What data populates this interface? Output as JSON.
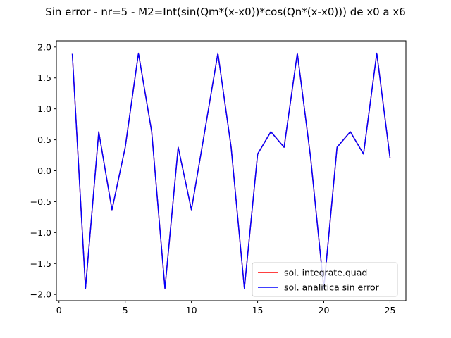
{
  "chart_data": {
    "type": "line",
    "title": "Sin error  - nr=5 - M2=Int(sin(Qm*(x-x0))*cos(Qn*(x-x0))) de x0 a x6",
    "xlabel": "",
    "ylabel": "",
    "xlim": [
      -0.2,
      26.2
    ],
    "ylim": [
      -2.1,
      2.1
    ],
    "xticks": [
      0,
      5,
      10,
      15,
      20,
      25
    ],
    "xtick_labels": [
      "0",
      "5",
      "10",
      "15",
      "20",
      "25"
    ],
    "yticks": [
      2.0,
      1.5,
      1.0,
      0.5,
      0.0,
      -0.5,
      -1.0,
      -1.5,
      -2.0
    ],
    "ytick_labels": [
      "2.0",
      "1.5",
      "1.0",
      "0.5",
      "0.0",
      "−0.5",
      "−1.0",
      "−1.5",
      "−2.0"
    ],
    "grid": false,
    "legend_position": "lower-right",
    "x": [
      1,
      2,
      3,
      4,
      5,
      6,
      7,
      8,
      9,
      10,
      11,
      12,
      13,
      14,
      15,
      16,
      17,
      18,
      19,
      20,
      21,
      22,
      23,
      24,
      25
    ],
    "series": [
      {
        "name": "sol. integrate.quad",
        "color": "#ff0000",
        "values": [
          1.9,
          -1.9,
          0.63,
          -0.63,
          0.38,
          1.9,
          0.63,
          -1.9,
          0.38,
          -0.63,
          0.63,
          1.9,
          0.38,
          -1.9,
          0.27,
          0.63,
          0.38,
          1.9,
          0.22,
          -1.9,
          0.38,
          0.63,
          0.27,
          1.9,
          0.21
        ]
      },
      {
        "name": "sol. analitica sin error",
        "color": "#0000ff",
        "values": [
          1.9,
          -1.9,
          0.63,
          -0.63,
          0.38,
          1.9,
          0.63,
          -1.9,
          0.38,
          -0.63,
          0.63,
          1.9,
          0.38,
          -1.9,
          0.27,
          0.63,
          0.38,
          1.9,
          0.22,
          -1.9,
          0.38,
          0.63,
          0.27,
          1.9,
          0.21
        ]
      }
    ]
  }
}
